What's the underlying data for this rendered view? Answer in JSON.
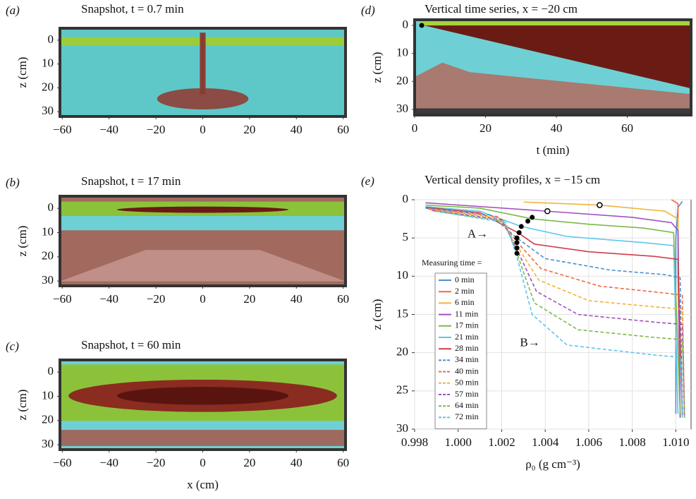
{
  "chart_data": [
    {
      "type": "image",
      "panel_label": "(a)",
      "title": "Snapshot, t = 0.7 min",
      "ylabel": "z (cm)",
      "xlim": [
        -61,
        61
      ],
      "ylim": [
        -5,
        32
      ],
      "xticks": [
        {
          "value": -60,
          "label": "−60"
        },
        {
          "value": -40,
          "label": "−40"
        },
        {
          "value": -20,
          "label": "−20"
        },
        0,
        20,
        40,
        60
      ],
      "yticks": [
        0,
        10,
        20,
        30
      ]
    },
    {
      "type": "image",
      "panel_label": "(b)",
      "title": "Snapshot, t = 17 min",
      "ylabel": "z (cm)",
      "xlim": [
        -61,
        61
      ],
      "ylim": [
        -5,
        32
      ],
      "xticks": [
        {
          "value": -60,
          "label": "−60"
        },
        {
          "value": -40,
          "label": "−40"
        },
        {
          "value": -20,
          "label": "−20"
        },
        0,
        20,
        40,
        60
      ],
      "yticks": [
        0,
        10,
        20,
        30
      ]
    },
    {
      "type": "image",
      "panel_label": "(c)",
      "title": "Snapshot, t = 60 min",
      "ylabel": "z (cm)",
      "xlabel": "x (cm)",
      "xlim": [
        -61,
        61
      ],
      "ylim": [
        -5,
        32
      ],
      "xticks": [
        {
          "value": -60,
          "label": "−60"
        },
        {
          "value": -40,
          "label": "−40"
        },
        {
          "value": -20,
          "label": "−20"
        },
        0,
        20,
        40,
        60
      ],
      "yticks": [
        0,
        10,
        20,
        30
      ]
    },
    {
      "type": "image",
      "panel_label": "(d)",
      "title": "Vertical time series, x = −20 cm",
      "ylabel": "z (cm)",
      "xlabel": "t (min)",
      "xlim": [
        0,
        78
      ],
      "ylim": [
        -2,
        32
      ],
      "xticks": [
        0,
        20,
        40,
        60
      ],
      "yticks": [
        0,
        10,
        20,
        30
      ],
      "points": {
        "x": [
          2
        ],
        "y": [
          0
        ]
      }
    },
    {
      "type": "line",
      "panel_label": "(e)",
      "title": "Vertical density profiles, x = −15 cm",
      "ylabel": "z (cm)",
      "xlabel": "ρ₀ (g cm⁻³)",
      "xlim": [
        0.998,
        1.0107
      ],
      "ylim": [
        0,
        30
      ],
      "grid": true,
      "xticks": [
        0.998,
        {
          "value": 1.0,
          "label": "1.000"
        },
        1.002,
        1.004,
        1.006,
        1.008,
        {
          "value": 1.01,
          "label": "1.010"
        }
      ],
      "yticks": [
        0,
        5,
        10,
        15,
        20,
        25,
        30
      ],
      "legend_title": "Measuring time =",
      "legend_loc": "center left",
      "series": [
        {
          "name": "0 min",
          "color": "#4a90d0",
          "dashed": false,
          "x": [
            1.0103,
            1.0101,
            1.01,
            1.01
          ],
          "values": [
            0.2,
            1,
            5,
            28
          ]
        },
        {
          "name": "2 min",
          "color": "#ee6a48",
          "dashed": false,
          "x": [
            1.0098,
            1.0101,
            1.0101,
            1.0102
          ],
          "values": [
            0,
            0.5,
            10,
            28.5
          ]
        },
        {
          "name": "6 min",
          "color": "#f0b43a",
          "dashed": false,
          "x": [
            1.003,
            1.0065,
            1.0095,
            1.0101,
            1.0102
          ],
          "values": [
            0.3,
            0.7,
            1.5,
            2.5,
            28.5
          ]
        },
        {
          "name": "11 min",
          "color": "#a24fc0",
          "dashed": false,
          "x": [
            0.9985,
            1.0041,
            1.008,
            1.0098,
            1.0101,
            1.0102
          ],
          "values": [
            0.4,
            1.5,
            2.3,
            3,
            4,
            28.5
          ]
        },
        {
          "name": "17 min",
          "color": "#7cba48",
          "dashed": false,
          "x": [
            0.9985,
            1.001,
            1.0034,
            1.006,
            1.0085,
            1.0099,
            1.0102
          ],
          "values": [
            0.7,
            1.1,
            2.5,
            3.2,
            3.7,
            4.3,
            28
          ]
        },
        {
          "name": "21 min",
          "color": "#5cc6ee",
          "dashed": false,
          "x": [
            0.9985,
            1.001,
            1.0029,
            1.005,
            1.0085,
            1.0099,
            1.0101
          ],
          "values": [
            0.9,
            1.5,
            3.5,
            4.8,
            5.6,
            6,
            28
          ]
        },
        {
          "name": "28 min",
          "color": "#cf3d48",
          "dashed": false,
          "x": [
            0.9985,
            1.001,
            1.0028,
            1.0035,
            1.006,
            1.009,
            1.0101,
            1.0103
          ],
          "values": [
            1,
            1.7,
            4.4,
            5.8,
            6.8,
            7.4,
            7.8,
            28
          ]
        },
        {
          "name": "34 min",
          "color": "#4a90d0",
          "dashed": true,
          "x": [
            0.9985,
            1.0015,
            1.0027,
            1.004,
            1.007,
            1.0095,
            1.0102,
            1.0103
          ],
          "values": [
            1.1,
            2,
            5,
            7.7,
            9.2,
            9.8,
            10.2,
            28.5
          ]
        },
        {
          "name": "40 min",
          "color": "#ee6a48",
          "dashed": true,
          "x": [
            0.9986,
            1.0018,
            1.0027,
            1.0038,
            1.0065,
            1.0095,
            1.0103,
            1.0104
          ],
          "values": [
            1.2,
            2.2,
            5.5,
            9,
            11.3,
            12.2,
            12.5,
            28.5
          ]
        },
        {
          "name": "50 min",
          "color": "#f0b43a",
          "dashed": true,
          "x": [
            0.9987,
            1.0019,
            1.0027,
            1.0037,
            1.006,
            1.009,
            1.0103,
            1.0104
          ],
          "values": [
            1.3,
            2.4,
            6,
            10.5,
            13.2,
            14,
            14.3,
            28.5
          ]
        },
        {
          "name": "57 min",
          "color": "#a24fc0",
          "dashed": true,
          "x": [
            0.9988,
            1.002,
            1.0027,
            1.0036,
            1.0055,
            1.009,
            1.0103,
            1.0104
          ],
          "values": [
            1.4,
            2.6,
            6.5,
            12,
            15,
            16,
            16.3,
            28.5
          ]
        },
        {
          "name": "64 min",
          "color": "#7cba48",
          "dashed": true,
          "x": [
            0.9989,
            1.0021,
            1.0027,
            1.0035,
            1.0055,
            1.009,
            1.0103,
            1.0104
          ],
          "values": [
            1.5,
            2.8,
            7,
            13.5,
            17,
            18,
            18.3,
            28.5
          ]
        },
        {
          "name": "72 min",
          "color": "#5cc6ee",
          "dashed": true,
          "x": [
            0.999,
            1.0022,
            1.0027,
            1.0034,
            1.005,
            1.009,
            1.0102,
            1.0103
          ],
          "values": [
            1.5,
            3,
            7.5,
            15,
            19,
            20.3,
            20.6,
            28.5
          ]
        }
      ],
      "points": {
        "x": [
          1.0034,
          1.0032,
          1.0029,
          1.0028,
          1.0027,
          1.0027,
          1.0027,
          1.0027
        ],
        "y": [
          2.3,
          2.8,
          3.5,
          4.3,
          5.0,
          5.6,
          6.3,
          7.0
        ]
      },
      "hollow_points": {
        "x": [
          1.0065,
          1.0041
        ],
        "y": [
          0.7,
          1.5
        ]
      },
      "annotations": [
        {
          "text": "A→",
          "x": 1.0009,
          "y": 4.6
        },
        {
          "text": "B→",
          "x": 1.0033,
          "y": 18.8
        }
      ]
    }
  ]
}
